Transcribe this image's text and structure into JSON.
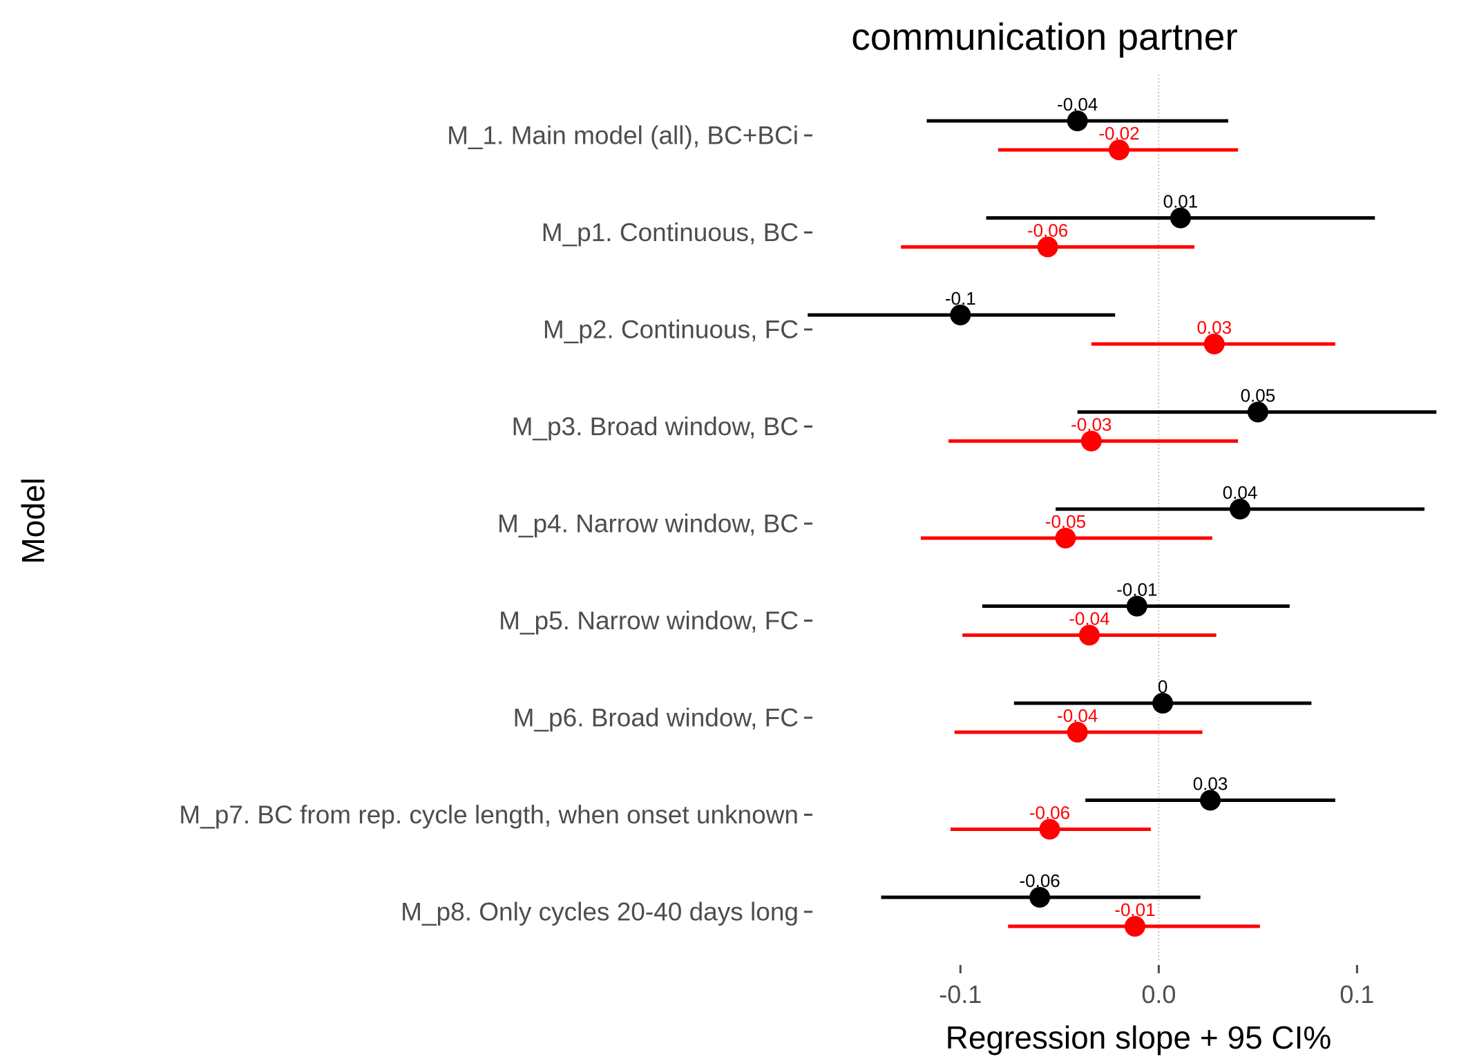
{
  "chart_data": {
    "type": "forest",
    "title": "communication partner",
    "xlabel": "Regression slope + 95 CI%",
    "ylabel": "Model",
    "xlim": [
      -0.175,
      0.142
    ],
    "x_ticks": [
      -0.1,
      0.0,
      0.1
    ],
    "x_tick_labels": [
      "-0.1",
      "0.0",
      "0.1"
    ],
    "reference_line": 0,
    "grid": false,
    "legend": "none",
    "colors": {
      "black_series": "#000000",
      "red_series": "#ff0000"
    },
    "categories": [
      "M_1. Main model (all), BC+BCi",
      "M_p1. Continuous, BC",
      "M_p2. Continuous, FC",
      "M_p3. Broad window, BC",
      "M_p4. Narrow window, BC",
      "M_p5. Narrow window, FC",
      "M_p6. Broad window, FC",
      "M_p7. BC from rep. cycle length, when onset unknown",
      "M_p8. Only cycles 20-40 days long"
    ],
    "series": [
      {
        "color": "#000000",
        "estimate": [
          -0.041,
          0.011,
          -0.1,
          0.05,
          0.041,
          -0.011,
          0.002,
          0.026,
          -0.06
        ],
        "ci_low": [
          -0.117,
          -0.087,
          -0.177,
          -0.041,
          -0.052,
          -0.089,
          -0.073,
          -0.037,
          -0.14
        ],
        "ci_high": [
          0.035,
          0.109,
          -0.022,
          0.14,
          0.134,
          0.066,
          0.077,
          0.089,
          0.021
        ],
        "labels": [
          "-0.04",
          "0.01",
          "-0.1",
          "0.05",
          "0.04",
          "-0.01",
          "0",
          "0.03",
          "-0.06"
        ]
      },
      {
        "color": "#ff0000",
        "estimate": [
          -0.02,
          -0.056,
          0.028,
          -0.034,
          -0.047,
          -0.035,
          -0.041,
          -0.055,
          -0.012
        ],
        "ci_low": [
          -0.081,
          -0.13,
          -0.034,
          -0.106,
          -0.12,
          -0.099,
          -0.103,
          -0.105,
          -0.076
        ],
        "ci_high": [
          0.04,
          0.018,
          0.089,
          0.04,
          0.027,
          0.029,
          0.022,
          -0.004,
          0.051
        ],
        "labels": [
          "-0.02",
          "-0.06",
          "0.03",
          "-0.03",
          "-0.05",
          "-0.04",
          "-0.04",
          "-0.06",
          "-0.01"
        ]
      }
    ]
  }
}
